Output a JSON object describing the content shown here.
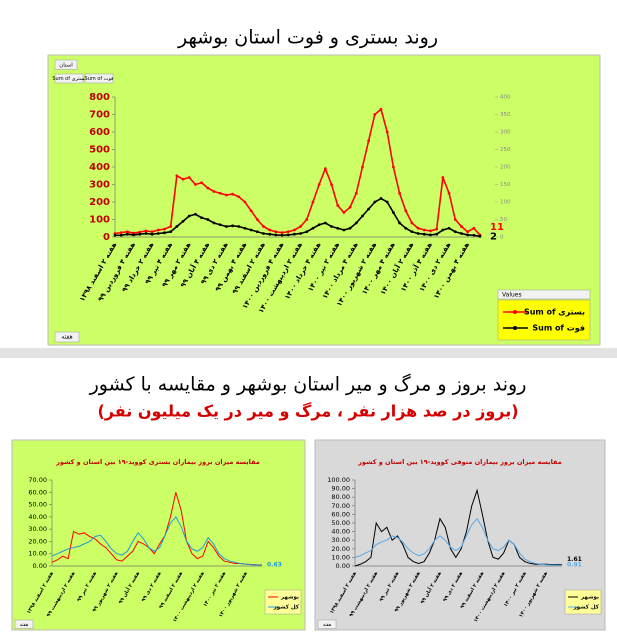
{
  "chart_data": [
    {
      "type": "line",
      "title": "روند بستری و فوت استان بوشهر",
      "background": "#ccff66",
      "filter_button": "استان",
      "field_buttons": [
        "Sum of بستری",
        "Sum of فوت"
      ],
      "values_header": "Values",
      "field_button": "هفته",
      "categories": [
        "هفته ۲ اسفند ۱۳۹۸",
        null,
        null,
        "هفته ۴ فروردین ۹۹",
        null,
        null,
        "هفته ۲ خرداد ۹۹",
        null,
        null,
        "هفته ۴ تیر ۹۹",
        null,
        null,
        "هفته ۲ مهر ۹۹",
        null,
        null,
        "هفته ۴ آبان ۹۹",
        null,
        null,
        "هفته ۲ دی ۹۹",
        null,
        null,
        "هفته ۴ بهمن ۹۹",
        null,
        null,
        "هفته ۲ اسفند ۹۹",
        null,
        null,
        "هفته ۴ فروردین ۱۴۰۰",
        null,
        null,
        "هفته ۲ اردیبهشت ۱۴۰۰",
        null,
        null,
        "هفته ۴ خرداد ۱۴۰۰",
        null,
        null,
        "هفته ۲ تیر ۱۴۰۰",
        null,
        null,
        "هفته ۴ مرداد ۱۴۰۰",
        null,
        null,
        "هفته ۲ شهریور ۱۴۰۰",
        null,
        null,
        "هفته ۴ مهر ۱۴۰۰",
        null,
        null,
        "هفته ۲ آبان ۱۴۰۰",
        null,
        null,
        "هفته ۴ آذر ۱۴۰۰",
        null,
        null,
        "هفته ۲ دی ۱۴۰۰",
        null,
        null,
        "هفته ۴ بهمن ۱۴۰۰",
        null,
        null
      ],
      "series": [
        {
          "name": "Sum of بستری",
          "color": "#ff0000",
          "markers": true,
          "end_label": true,
          "values": [
            20,
            25,
            30,
            22,
            28,
            35,
            30,
            40,
            45,
            60,
            350,
            330,
            340,
            300,
            310,
            280,
            260,
            250,
            240,
            245,
            230,
            200,
            150,
            100,
            60,
            40,
            30,
            25,
            30,
            40,
            60,
            100,
            200,
            300,
            390,
            300,
            180,
            140,
            170,
            250,
            400,
            550,
            700,
            730,
            600,
            400,
            250,
            150,
            80,
            50,
            40,
            35,
            45,
            340,
            250,
            100,
            60,
            30,
            50,
            11
          ]
        },
        {
          "name": "Sum of فوت",
          "color": "#000000",
          "axis": "y2",
          "markers": true,
          "end_label": true,
          "values": [
            5,
            5,
            8,
            6,
            8,
            10,
            8,
            10,
            12,
            15,
            30,
            45,
            60,
            65,
            55,
            50,
            40,
            35,
            30,
            32,
            30,
            25,
            20,
            15,
            10,
            8,
            6,
            5,
            6,
            8,
            10,
            15,
            25,
            35,
            40,
            30,
            25,
            20,
            25,
            40,
            60,
            80,
            100,
            110,
            100,
            70,
            40,
            25,
            15,
            10,
            8,
            6,
            8,
            20,
            25,
            15,
            10,
            6,
            5,
            2
          ]
        }
      ],
      "ylim": [
        0,
        800
      ],
      "yticks": [
        0,
        100,
        200,
        300,
        400,
        500,
        600,
        700,
        800
      ],
      "y2lim": [
        0,
        400
      ],
      "y2ticks": [
        0,
        50,
        100,
        150,
        200,
        250,
        300,
        350,
        400
      ],
      "grid": false,
      "legend": "lower right"
    },
    {
      "type": "line",
      "title": "مقایسه میزان بروز بیماران بستری کووید-۱۹ بین استان و کشور",
      "background": "#ccff66",
      "field_button": "هفته",
      "categories": [
        "هفته ۲ اسفند ۱۳۹۸",
        null,
        null,
        null,
        "هفته ۲ اردیبهشت ۹۹",
        null,
        null,
        null,
        "هفته ۲ تیر ۹۹",
        null,
        null,
        null,
        "هفته ۲ شهریور ۹۹",
        null,
        null,
        null,
        "هفته ۲ آبان ۹۹",
        null,
        null,
        null,
        "هفته ۲ دی ۹۹",
        null,
        null,
        null,
        "هفته ۲ اسفند ۹۹",
        null,
        null,
        null,
        "هفته ۲ اردیبهشت ۱۴۰۰",
        null,
        null,
        null,
        "هفته ۲ تیر ۱۴۰۰",
        null,
        null,
        null,
        "هفته ۲ شهریور ۱۴۰۰",
        null,
        null,
        null
      ],
      "series": [
        {
          "name": "بوشهر",
          "color": "#ff0000",
          "values": [
            3,
            5,
            8,
            6,
            28,
            26,
            27,
            24,
            22,
            18,
            15,
            10,
            5,
            4,
            8,
            12,
            20,
            18,
            15,
            10,
            18,
            25,
            40,
            60,
            45,
            20,
            10,
            6,
            8,
            20,
            15,
            8,
            4,
            3,
            2,
            2,
            1.5,
            1.2,
            1,
            0.9
          ]
        },
        {
          "name": "کل کشور",
          "color": "#1f9bd6",
          "end_label": true,
          "values": [
            8,
            10,
            12,
            14,
            15,
            16,
            18,
            20,
            24,
            25,
            20,
            14,
            10,
            9,
            12,
            20,
            27,
            22,
            15,
            12,
            15,
            25,
            35,
            40,
            32,
            20,
            14,
            12,
            15,
            23,
            18,
            10,
            6,
            4,
            3,
            2,
            1.5,
            1,
            0.8,
            0.63
          ]
        }
      ],
      "ylim": [
        0,
        70
      ],
      "yticks": [
        {
          "value": 0,
          "label": "0.00"
        },
        {
          "value": 10,
          "label": "10.00"
        },
        {
          "value": 20,
          "label": "20.00"
        },
        {
          "value": 30,
          "label": "30.00"
        },
        {
          "value": 40,
          "label": "40.00"
        },
        {
          "value": 50,
          "label": "50.00"
        },
        {
          "value": 60,
          "label": "60.00"
        },
        {
          "value": 70,
          "label": "70.00"
        }
      ],
      "grid": false,
      "legend": "lower right"
    },
    {
      "type": "line",
      "title": "مقایسه میزان بروز بیماران متوفی کووید-۱۹ بین استان و کشور",
      "background": "#d9d9d9",
      "field_button": "هفته",
      "categories": [
        "هفته ۲ اسفند ۱۳۹۸",
        null,
        null,
        null,
        "هفته ۲ اردیبهشت ۹۹",
        null,
        null,
        null,
        "هفته ۲ تیر ۹۹",
        null,
        null,
        null,
        "هفته ۲ شهریور ۹۹",
        null,
        null,
        null,
        "هفته ۲ آبان ۹۹",
        null,
        null,
        null,
        "هفته ۲ دی ۹۹",
        null,
        null,
        null,
        "هفته ۲ اسفند ۹۹",
        null,
        null,
        null,
        "هفته ۲ اردیبهشت ۱۴۰۰",
        null,
        null,
        null,
        "هفته ۲ تیر ۱۴۰۰",
        null,
        null,
        null,
        "هفته ۲ شهریور ۱۴۰۰",
        null,
        null,
        null
      ],
      "series": [
        {
          "name": "بوشهر",
          "color": "#000000",
          "end_label": true,
          "values": [
            0,
            2,
            5,
            10,
            50,
            40,
            45,
            30,
            35,
            25,
            10,
            5,
            3,
            5,
            15,
            30,
            55,
            45,
            20,
            10,
            20,
            40,
            70,
            88,
            60,
            30,
            10,
            8,
            15,
            30,
            25,
            10,
            5,
            3,
            2,
            2,
            2,
            1.8,
            1.7,
            1.61
          ]
        },
        {
          "name": "کل کشور",
          "color": "#5aa9e6",
          "end_label": true,
          "values": [
            10,
            12,
            15,
            18,
            25,
            28,
            30,
            35,
            33,
            28,
            20,
            15,
            12,
            14,
            20,
            30,
            35,
            30,
            22,
            18,
            22,
            35,
            48,
            55,
            45,
            30,
            20,
            18,
            22,
            30,
            25,
            15,
            8,
            5,
            3,
            2,
            1.5,
            1.2,
            1,
            0.91
          ]
        }
      ],
      "ylim": [
        0,
        100
      ],
      "yticks": [
        {
          "value": 0,
          "label": "0.00"
        },
        {
          "value": 10,
          "label": "10.00"
        },
        {
          "value": 20,
          "label": "20.00"
        },
        {
          "value": 30,
          "label": "30.00"
        },
        {
          "value": 40,
          "label": "40.00"
        },
        {
          "value": 50,
          "label": "50.00"
        },
        {
          "value": 60,
          "label": "60.00"
        },
        {
          "value": 70,
          "label": "70.00"
        },
        {
          "value": 80,
          "label": "80.00"
        },
        {
          "value": 90,
          "label": "90.00"
        },
        {
          "value": 100,
          "label": "100.00"
        }
      ],
      "grid": false,
      "legend": "lower right"
    }
  ],
  "section_2": {
    "title": "روند بروز و مرگ و میر استان بوشهر و مقایسه با کشور",
    "subtitle": "(بروز در صد هزار نفر ، مرگ و میر در یک میلیون نفر)"
  }
}
